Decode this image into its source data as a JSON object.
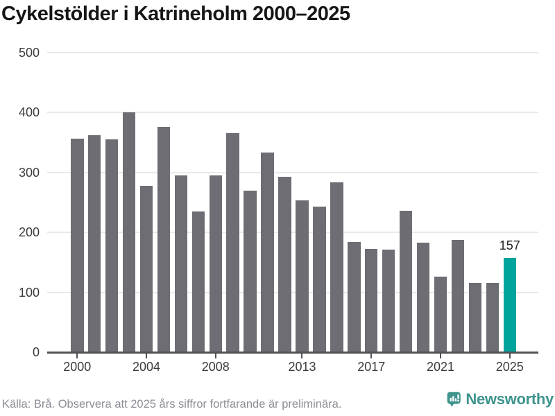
{
  "title": "Cykelstölder i Katrineholm 2000–2025",
  "chart_data": {
    "type": "bar",
    "title": "Cykelstölder i Katrineholm 2000–2025",
    "categories": [
      2000,
      2001,
      2002,
      2003,
      2004,
      2005,
      2006,
      2007,
      2008,
      2009,
      2010,
      2011,
      2012,
      2013,
      2014,
      2015,
      2016,
      2017,
      2018,
      2019,
      2020,
      2021,
      2022,
      2023,
      2024,
      2025
    ],
    "values": [
      357,
      362,
      355,
      400,
      278,
      376,
      295,
      235,
      295,
      366,
      270,
      333,
      293,
      253,
      243,
      284,
      184,
      172,
      171,
      236,
      183,
      126,
      187,
      116,
      116,
      157
    ],
    "bar_color": "#6e6d73",
    "highlight": {
      "year": 2025,
      "value": 157,
      "label": "157",
      "color": "#00a49d"
    },
    "ylim": [
      0,
      500
    ],
    "yticks": [
      0,
      100,
      200,
      300,
      400,
      500
    ],
    "xtick_labels": [
      "2000",
      "2004",
      "2008",
      "2013",
      "2017",
      "2021",
      "2025"
    ],
    "xtick_indices": [
      0,
      4,
      8,
      13,
      17,
      21,
      25
    ],
    "grid": "horizontal",
    "legend": "none",
    "source_note": "Källa: Brå. Observera att 2025 års siffror fortfarande är preliminära."
  },
  "footer": {
    "source": "Källa: Brå. Observera att 2025 års siffror fortfarande är preliminära.",
    "brand": "Newsworthy"
  },
  "colors": {
    "bar_gray": "#6e6d73",
    "bar_teal": "#00a49d",
    "gridline": "#e9e9e9",
    "axis": "#515156",
    "axis_text": "#3b3b3b",
    "footer_text": "#8d8d96",
    "brand_teal": "#3f948e"
  }
}
